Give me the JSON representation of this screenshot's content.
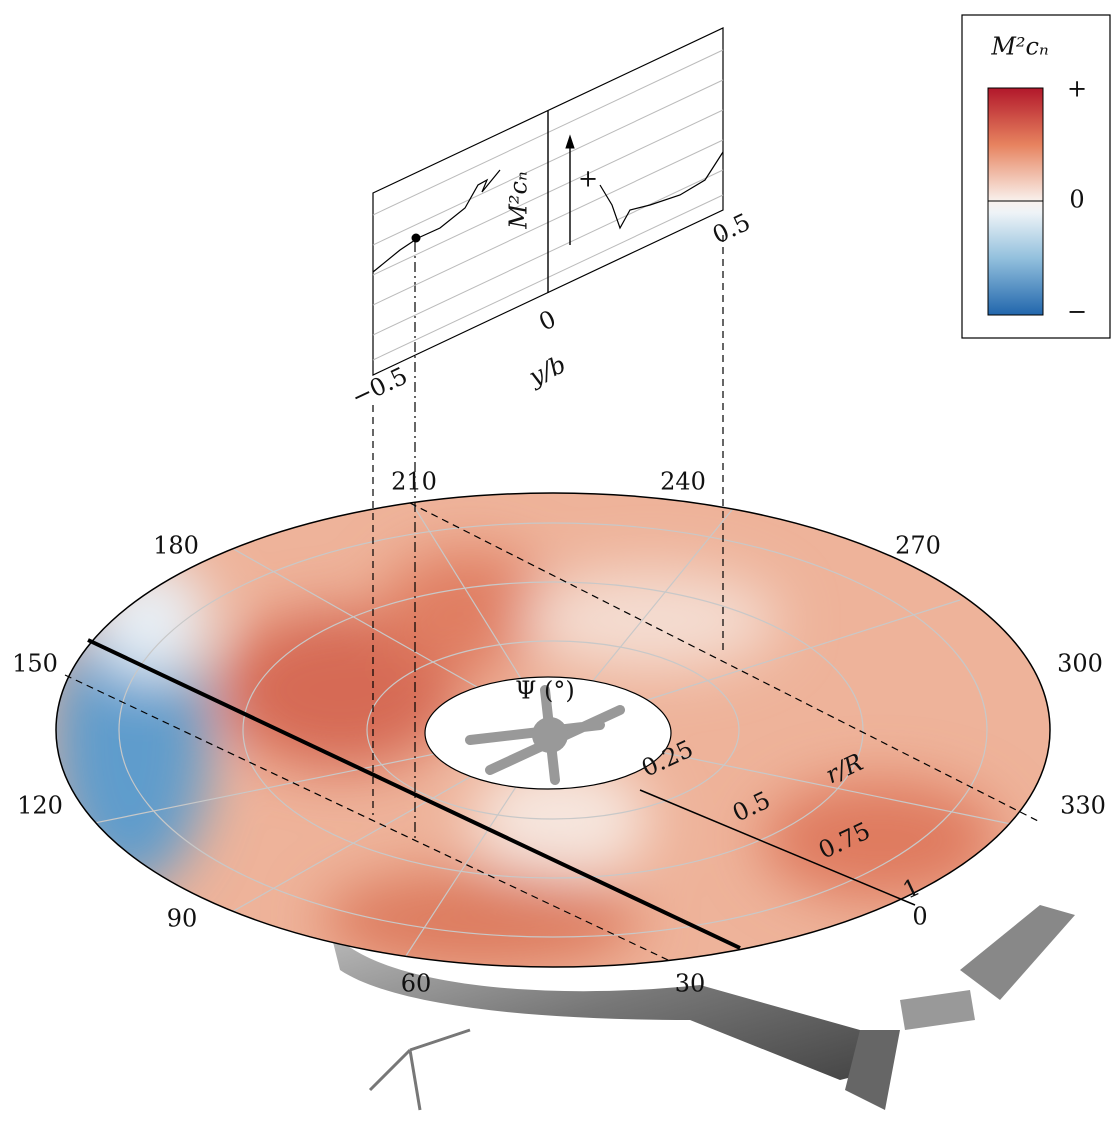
{
  "legend": {
    "title": "M²cₙ",
    "labels": [
      "+",
      "0",
      "−"
    ]
  },
  "inset": {
    "y_label": "M²cₙ",
    "arrow_label": "+",
    "x_label": "y/b",
    "x_ticks": [
      "−0.5",
      "0",
      "0.5"
    ]
  },
  "disk": {
    "azimuth_labels": [
      "0",
      "30",
      "60",
      "90",
      "120",
      "150",
      "180",
      "210",
      "240",
      "270",
      "300",
      "330"
    ],
    "radial_labels": [
      "0.25",
      "0.5",
      "0.75",
      "1"
    ],
    "radial_title": "r/R",
    "azimuth_title": "Ψ (°)"
  }
}
